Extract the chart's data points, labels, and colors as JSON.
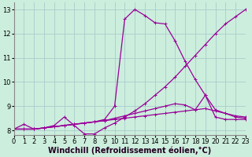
{
  "xlabel": "Windchill (Refroidissement éolien,°C)",
  "background_color": "#cceedd",
  "grid_color": "#aacccc",
  "line_color": "#990099",
  "xlim": [
    0,
    23
  ],
  "ylim": [
    7.8,
    13.3
  ],
  "yticks": [
    8,
    9,
    10,
    11,
    12,
    13
  ],
  "xticks": [
    0,
    1,
    2,
    3,
    4,
    5,
    6,
    7,
    8,
    9,
    10,
    11,
    12,
    13,
    14,
    15,
    16,
    17,
    18,
    19,
    20,
    21,
    22,
    23
  ],
  "series": [
    [
      8.05,
      8.25,
      8.05,
      8.1,
      8.2,
      8.55,
      8.2,
      7.85,
      7.85,
      8.1,
      8.3,
      8.55,
      8.8,
      9.1,
      9.45,
      9.8,
      10.2,
      10.65,
      11.1,
      11.55,
      12.0,
      12.4,
      12.7,
      13.0
    ],
    [
      8.05,
      8.05,
      8.05,
      8.1,
      8.15,
      8.2,
      8.25,
      8.3,
      8.35,
      8.4,
      8.45,
      8.5,
      8.55,
      8.6,
      8.65,
      8.7,
      8.75,
      8.8,
      8.85,
      8.9,
      8.8,
      8.7,
      8.6,
      8.55
    ],
    [
      8.05,
      8.05,
      8.05,
      8.1,
      8.15,
      8.2,
      8.25,
      8.3,
      8.35,
      8.4,
      8.5,
      8.6,
      8.7,
      8.8,
      8.9,
      9.0,
      9.1,
      9.05,
      8.85,
      9.45,
      8.85,
      8.7,
      8.55,
      8.5
    ],
    [
      8.05,
      8.05,
      8.05,
      8.1,
      8.15,
      8.2,
      8.25,
      8.3,
      8.35,
      8.45,
      9.0,
      12.6,
      13.0,
      12.75,
      12.45,
      12.4,
      11.7,
      10.85,
      10.1,
      9.45,
      8.55,
      8.45,
      8.45,
      8.45
    ]
  ],
  "marker": "+",
  "markersize": 3,
  "linewidth": 0.9,
  "xlabel_fontsize": 7,
  "tick_fontsize": 6,
  "figsize": [
    3.2,
    2.0
  ],
  "dpi": 100
}
